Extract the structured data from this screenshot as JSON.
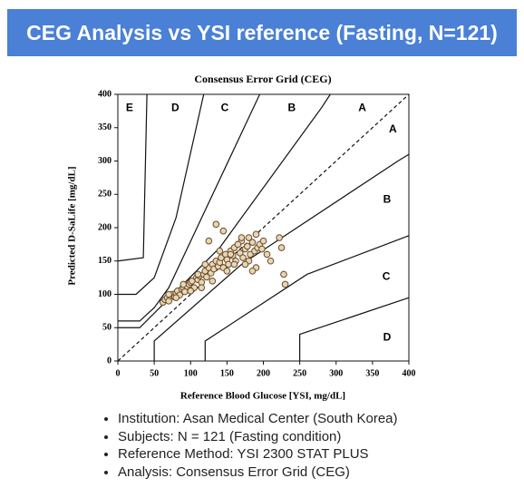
{
  "header": {
    "title": "CEG Analysis vs YSI reference (Fasting, N=121)"
  },
  "chart_data": {
    "type": "scatter",
    "title": "Consensus Error Grid (CEG)",
    "x_label": "Reference Blood Glucose [YSI, mg/dL]",
    "y_label": "Predicted D-SaLife [mg/dL]",
    "xlim": [
      0,
      400
    ],
    "ylim": [
      0,
      400
    ],
    "xticks": [
      0,
      50,
      100,
      150,
      200,
      250,
      300,
      350,
      400
    ],
    "yticks": [
      0,
      50,
      100,
      150,
      200,
      250,
      300,
      350,
      400
    ],
    "color": "#e6d6b4",
    "edge_color": "#6b4a2a",
    "x": [
      62,
      65,
      68,
      70,
      72,
      75,
      78,
      80,
      82,
      85,
      88,
      90,
      92,
      95,
      98,
      100,
      102,
      105,
      108,
      110,
      112,
      115,
      118,
      120,
      122,
      125,
      128,
      130,
      132,
      135,
      138,
      140,
      142,
      145,
      148,
      150,
      152,
      155,
      158,
      160,
      162,
      165,
      168,
      170,
      172,
      175,
      178,
      180,
      182,
      185,
      188,
      190,
      192,
      195,
      198,
      200,
      205,
      210,
      222,
      225,
      228,
      230,
      70,
      80,
      90,
      100,
      110,
      120,
      130,
      140,
      150,
      160,
      170,
      180,
      190,
      135,
      145,
      155,
      165,
      175,
      185,
      115,
      125
    ],
    "values": [
      88,
      92,
      95,
      90,
      98,
      100,
      96,
      102,
      105,
      99,
      108,
      110,
      104,
      112,
      115,
      118,
      120,
      110,
      125,
      122,
      128,
      118,
      130,
      135,
      126,
      140,
      132,
      145,
      138,
      150,
      142,
      148,
      155,
      140,
      160,
      152,
      145,
      165,
      158,
      170,
      150,
      175,
      162,
      180,
      155,
      168,
      172,
      185,
      160,
      178,
      165,
      190,
      170,
      175,
      168,
      180,
      160,
      150,
      185,
      170,
      130,
      115,
      100,
      95,
      115,
      105,
      130,
      145,
      120,
      165,
      135,
      145,
      185,
      150,
      140,
      205,
      195,
      160,
      175,
      145,
      135,
      110,
      180
    ],
    "boundaries": [
      {
        "x": [
          0,
          400
        ],
        "y": [
          0,
          400
        ],
        "dashed": true
      },
      {
        "x": [
          0,
          30,
          140,
          280,
          292
        ],
        "y": [
          50,
          50,
          170,
          380,
          400
        ]
      },
      {
        "x": [
          0,
          30,
          50,
          70,
          195
        ],
        "y": [
          60,
          60,
          80,
          110,
          400
        ]
      },
      {
        "x": [
          0,
          25,
          50,
          80,
          118
        ],
        "y": [
          100,
          100,
          125,
          215,
          400
        ]
      },
      {
        "x": [
          0,
          35,
          40
        ],
        "y": [
          150,
          155,
          400
        ]
      },
      {
        "x": [
          50,
          50,
          170,
          385,
          400
        ],
        "y": [
          0,
          30,
          145,
          300,
          310
        ]
      },
      {
        "x": [
          120,
          120,
          260,
          400
        ],
        "y": [
          0,
          30,
          130,
          188
        ]
      },
      {
        "x": [
          250,
          250,
          400
        ],
        "y": [
          0,
          40,
          95
        ]
      }
    ],
    "zone_labels": [
      {
        "text": "E",
        "x": 16,
        "y": 379
      },
      {
        "text": "D",
        "x": 79,
        "y": 379
      },
      {
        "text": "C",
        "x": 147,
        "y": 379
      },
      {
        "text": "B",
        "x": 239,
        "y": 379
      },
      {
        "text": "A",
        "x": 336,
        "y": 379
      },
      {
        "text": "A",
        "x": 378,
        "y": 347
      },
      {
        "text": "B",
        "x": 370,
        "y": 242
      },
      {
        "text": "C",
        "x": 369,
        "y": 126
      },
      {
        "text": "D",
        "x": 370,
        "y": 35
      }
    ]
  },
  "notes": [
    "Institution: Asan Medical Center (South Korea)",
    "Subjects: N = 121 (Fasting condition)",
    "Reference Method: YSI 2300 STAT PLUS",
    "Analysis: Consensus Error Grid (CEG)"
  ]
}
